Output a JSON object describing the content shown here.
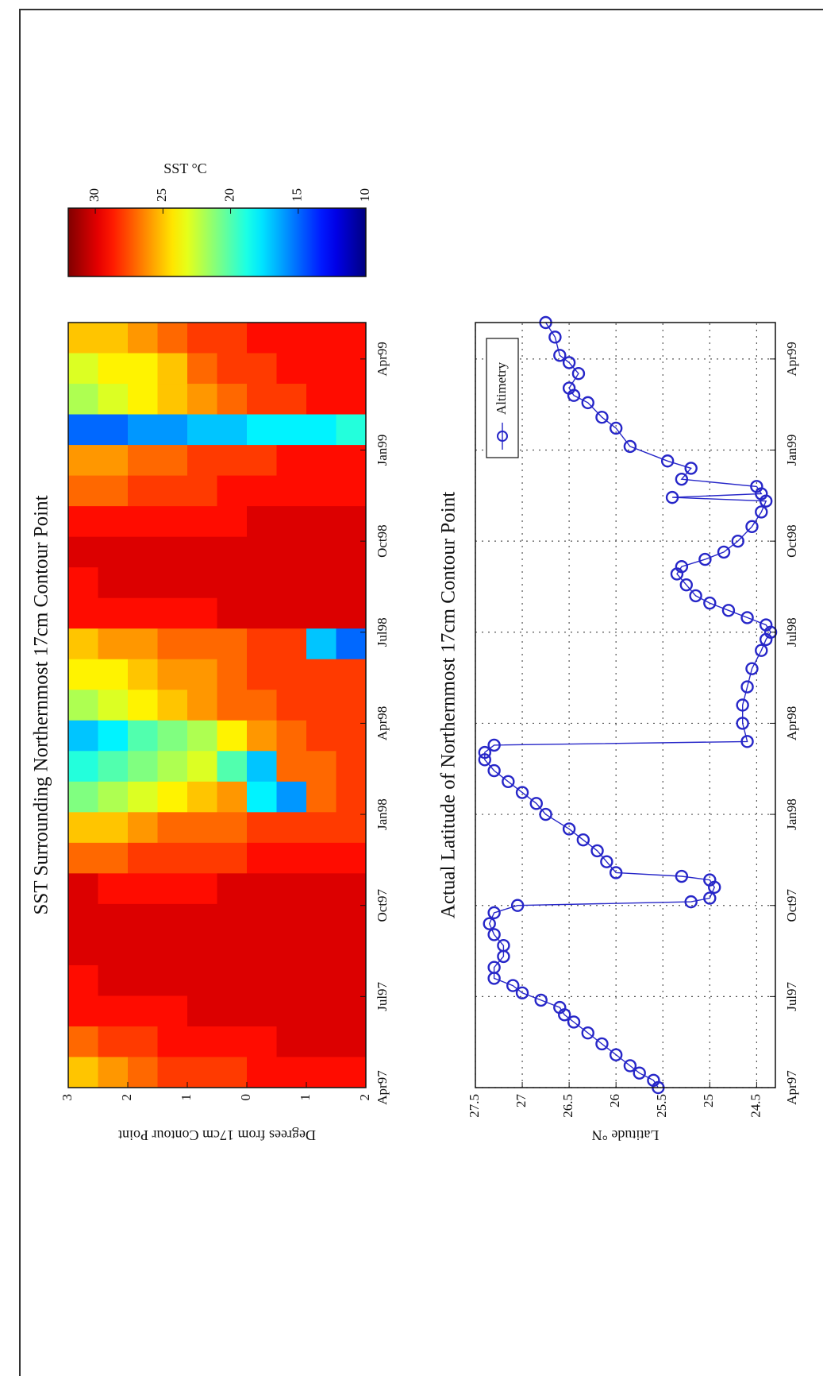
{
  "chart_data": [
    {
      "type": "heatmap",
      "title": "SST Surrounding Northernmost 17cm Contour Point",
      "ylabel": "Degrees from 17cm Contour Point",
      "x": [
        1997.292,
        1997.376,
        1997.46,
        1997.544,
        1997.628,
        1997.712,
        1997.796,
        1997.88,
        1997.964,
        1998.048,
        1998.132,
        1998.216,
        1998.3,
        1998.384,
        1998.468,
        1998.552,
        1998.636,
        1998.72,
        1998.804,
        1998.888,
        1998.972,
        1999.056,
        1999.14,
        1999.224,
        1999.308
      ],
      "y": [
        2.75,
        2.25,
        1.75,
        1.25,
        0.75,
        0.25,
        -0.25,
        -0.75,
        -1.25,
        -1.75
      ],
      "z": [
        [
          25,
          27,
          29,
          29,
          30,
          30,
          30,
          27,
          25,
          21,
          19,
          17,
          22,
          24,
          25,
          29,
          29,
          30,
          29,
          27,
          26,
          15,
          22,
          23,
          25
        ],
        [
          26,
          28,
          29,
          30,
          30,
          30,
          29,
          27,
          25,
          22,
          20,
          18,
          23,
          24,
          26,
          29,
          30,
          30,
          29,
          27,
          26,
          15,
          23,
          24,
          25
        ],
        [
          27,
          28,
          29,
          30,
          30,
          30,
          29,
          28,
          26,
          23,
          21,
          20,
          24,
          25,
          26,
          29,
          30,
          30,
          29,
          28,
          27,
          16,
          24,
          24,
          26
        ],
        [
          28,
          29,
          29,
          30,
          30,
          30,
          29,
          28,
          27,
          24,
          22,
          21,
          25,
          26,
          27,
          29,
          30,
          30,
          29,
          28,
          27,
          16,
          25,
          25,
          27
        ],
        [
          28,
          29,
          30,
          30,
          30,
          30,
          29,
          28,
          27,
          25,
          23,
          22,
          26,
          26,
          27,
          29,
          30,
          30,
          29,
          28,
          28,
          17,
          26,
          27,
          28
        ],
        [
          28,
          29,
          30,
          30,
          30,
          30,
          30,
          28,
          27,
          26,
          20,
          24,
          27,
          27,
          27,
          30,
          30,
          30,
          29,
          29,
          28,
          17,
          27,
          28,
          28
        ],
        [
          29,
          29,
          30,
          30,
          30,
          30,
          30,
          29,
          28,
          18,
          17,
          26,
          27,
          28,
          28,
          30,
          30,
          30,
          30,
          29,
          28,
          18,
          28,
          28,
          29
        ],
        [
          29,
          30,
          30,
          30,
          30,
          30,
          30,
          29,
          28,
          16,
          27,
          27,
          28,
          28,
          28,
          30,
          30,
          30,
          30,
          29,
          29,
          18,
          28,
          29,
          29
        ],
        [
          29,
          30,
          30,
          30,
          30,
          30,
          30,
          29,
          28,
          27,
          27,
          28,
          28,
          28,
          17,
          30,
          30,
          30,
          30,
          29,
          29,
          18,
          29,
          29,
          29
        ],
        [
          29,
          30,
          30,
          30,
          30,
          30,
          30,
          29,
          28,
          28,
          28,
          28,
          28,
          28,
          15,
          30,
          30,
          30,
          30,
          29,
          29,
          19,
          29,
          29,
          29
        ]
      ],
      "xlim": [
        1997.25,
        1999.35
      ],
      "xticks": [
        {
          "value": 1997.25,
          "label": "Apr97"
        },
        {
          "value": 1997.5,
          "label": "Jul97"
        },
        {
          "value": 1997.75,
          "label": "Oct97"
        },
        {
          "value": 1998.0,
          "label": "Jan98"
        },
        {
          "value": 1998.25,
          "label": "Apr98"
        },
        {
          "value": 1998.5,
          "label": "Jul98"
        },
        {
          "value": 1998.75,
          "label": "Oct98"
        },
        {
          "value": 1999.0,
          "label": "Jan99"
        },
        {
          "value": 1999.25,
          "label": "Apr99"
        }
      ],
      "ylim": [
        -2,
        3
      ],
      "yticks": [
        3,
        2,
        1,
        0,
        {
          "value": -1,
          "label": "1"
        },
        {
          "value": -2,
          "label": "2"
        }
      ],
      "colormap": "jet",
      "clim": [
        10,
        32
      ],
      "colorbar": {
        "label": "SST °C",
        "ticks": [
          10,
          15,
          20,
          25,
          30
        ]
      }
    },
    {
      "type": "line",
      "title": "Actual Latitude of Northernmost 17cm Contour Point",
      "ylabel": "Latitude °N",
      "series": [
        {
          "name": "Altimetry",
          "color": "#2626c8",
          "x": [
            1997.25,
            1997.27,
            1997.29,
            1997.31,
            1997.34,
            1997.37,
            1997.4,
            1997.43,
            1997.45,
            1997.47,
            1997.49,
            1997.51,
            1997.53,
            1997.55,
            1997.58,
            1997.61,
            1997.64,
            1997.67,
            1997.7,
            1997.73,
            1997.75,
            1997.76,
            1997.77,
            1997.8,
            1997.82,
            1997.83,
            1997.84,
            1997.87,
            1997.9,
            1997.93,
            1997.96,
            1998.0,
            1998.03,
            1998.06,
            1998.09,
            1998.12,
            1998.15,
            1998.17,
            1998.19,
            1998.2,
            1998.25,
            1998.3,
            1998.35,
            1998.4,
            1998.45,
            1998.48,
            1998.5,
            1998.52,
            1998.54,
            1998.56,
            1998.58,
            1998.6,
            1998.63,
            1998.66,
            1998.68,
            1998.7,
            1998.72,
            1998.75,
            1998.79,
            1998.83,
            1998.86,
            1998.87,
            1998.88,
            1998.9,
            1998.92,
            1998.95,
            1998.97,
            1999.01,
            1999.06,
            1999.09,
            1999.13,
            1999.15,
            1999.17,
            1999.21,
            1999.24,
            1999.26,
            1999.31,
            1999.35
          ],
          "values": [
            25.55,
            25.6,
            25.75,
            25.85,
            26.0,
            26.15,
            26.3,
            26.45,
            26.55,
            26.6,
            26.8,
            27.0,
            27.1,
            27.3,
            27.3,
            27.2,
            27.2,
            27.3,
            27.35,
            27.3,
            27.05,
            25.2,
            25.0,
            24.95,
            25.0,
            25.3,
            26.0,
            26.1,
            26.2,
            26.35,
            26.5,
            26.75,
            26.85,
            27.0,
            27.15,
            27.3,
            27.4,
            27.4,
            27.3,
            24.6,
            24.65,
            24.65,
            24.6,
            24.55,
            24.45,
            24.4,
            24.35,
            24.4,
            24.6,
            24.8,
            25.0,
            25.15,
            25.25,
            25.35,
            25.3,
            25.05,
            24.85,
            24.7,
            24.55,
            24.45,
            24.4,
            25.4,
            24.45,
            24.5,
            25.3,
            25.2,
            25.45,
            25.85,
            26.0,
            26.15,
            26.3,
            26.45,
            26.5,
            26.4,
            26.5,
            26.6,
            26.65,
            26.75
          ]
        }
      ],
      "xlim": [
        1997.25,
        1999.35
      ],
      "xticks": [
        {
          "value": 1997.25,
          "label": "Apr97"
        },
        {
          "value": 1997.5,
          "label": "Jul97"
        },
        {
          "value": 1997.75,
          "label": "Oct97"
        },
        {
          "value": 1998.0,
          "label": "Jan98"
        },
        {
          "value": 1998.25,
          "label": "Apr98"
        },
        {
          "value": 1998.5,
          "label": "Jul98"
        },
        {
          "value": 1998.75,
          "label": "Oct98"
        },
        {
          "value": 1999.0,
          "label": "Jan99"
        },
        {
          "value": 1999.25,
          "label": "Apr99"
        }
      ],
      "ylim": [
        24.3,
        27.5
      ],
      "yticks": [
        27.5,
        27,
        26.5,
        26,
        25.5,
        25,
        24.5
      ],
      "grid": true,
      "legend": "upper right"
    }
  ]
}
